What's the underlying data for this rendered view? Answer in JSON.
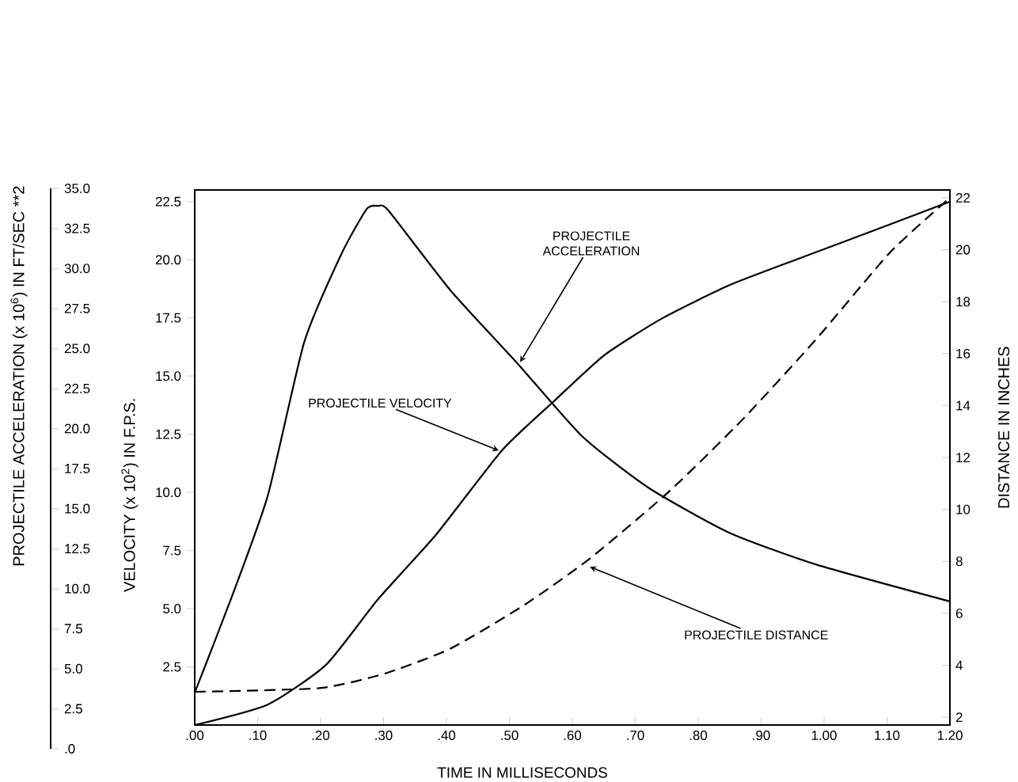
{
  "chart_data": {
    "type": "line",
    "xlabel": "TIME IN MILLISECONDS",
    "ylabel": "VELOCITY (x 10$^{2}$) IN F.P.S.",
    "y2label": "DISTANCE IN INCHES",
    "y3label": "PROJECTILE ACCELERATION (x 10$^{6}$) IN FT/SEC **2",
    "xlim": [
      0,
      1.2
    ],
    "ylim": [
      0,
      23
    ],
    "y2lim": [
      1.7,
      22.3
    ],
    "y3lim": [
      0,
      35
    ],
    "xticks": [
      {
        "value": 0,
        "label": ".00"
      },
      {
        "value": 0.1,
        "label": ".10"
      },
      {
        "value": 0.2,
        "label": ".20"
      },
      {
        "value": 0.3,
        "label": ".30"
      },
      {
        "value": 0.4,
        "label": ".40"
      },
      {
        "value": 0.5,
        "label": ".50"
      },
      {
        "value": 0.6,
        "label": ".60"
      },
      {
        "value": 0.7,
        "label": ".70"
      },
      {
        "value": 0.8,
        "label": ".80"
      },
      {
        "value": 0.9,
        "label": ".90"
      },
      {
        "value": 1.0,
        "label": "1.00"
      },
      {
        "value": 1.1,
        "label": "1.10"
      },
      {
        "value": 1.2,
        "label": "1.20"
      }
    ],
    "yticks": [
      2.5,
      {
        "value": 5,
        "label": "5.0"
      },
      7.5,
      {
        "value": 10,
        "label": "10.0"
      },
      12.5,
      {
        "value": 15,
        "label": "15.0"
      },
      17.5,
      {
        "value": 20,
        "label": "20.0"
      },
      22.5
    ],
    "y2ticks": [
      2,
      4,
      6,
      8,
      10,
      12,
      14,
      16,
      18,
      20,
      22
    ],
    "y3ticks": [
      {
        "value": 0,
        "label": ".0"
      },
      2.5,
      {
        "value": 5,
        "label": "5.0"
      },
      7.5,
      {
        "value": 10,
        "label": "10.0"
      },
      12.5,
      {
        "value": 15,
        "label": "15.0"
      },
      17.5,
      {
        "value": 20,
        "label": "20.0"
      },
      22.5,
      {
        "value": 25,
        "label": "25.0"
      },
      27.5,
      {
        "value": 30,
        "label": "30.0"
      },
      32.5,
      {
        "value": 35,
        "label": "35.0"
      }
    ],
    "grid": false,
    "marker": "none",
    "series": [
      {
        "axis": "y3",
        "color": "#000000",
        "line_style": "solid",
        "x": [
          0,
          0.058,
          0.116,
          0.174,
          0.233,
          0.273,
          0.291,
          0.308,
          0.407,
          0.512,
          0.616,
          0.721,
          0.849,
          0.988,
          1.2
        ],
        "values": [
          3.5,
          9.4,
          15.8,
          25.4,
          30.9,
          33.7,
          33.9,
          33.6,
          28.6,
          24.1,
          19.5,
          16.3,
          13.5,
          11.5,
          9.2
        ]
      },
      {
        "axis": "y",
        "color": "#000000",
        "line_style": "solid",
        "x": [
          0,
          0.116,
          0.209,
          0.291,
          0.384,
          0.488,
          0.57,
          0.651,
          0.744,
          0.849,
          0.965,
          1.093,
          1.2
        ],
        "values": [
          0,
          0.88,
          2.6,
          5.4,
          8.2,
          11.8,
          13.9,
          15.9,
          17.5,
          18.9,
          20.1,
          21.4,
          22.5
        ]
      },
      {
        "axis": "y2",
        "color": "#000000",
        "line_style": "dashed",
        "x": [
          0,
          0.198,
          0.302,
          0.407,
          0.523,
          0.628,
          0.756,
          0.872,
          0.988,
          1.105,
          1.2
        ],
        "values": [
          2.98,
          3.12,
          3.68,
          4.65,
          6.31,
          8.11,
          10.74,
          13.5,
          16.57,
          19.9,
          22.0
        ]
      }
    ],
    "annotations": [
      {
        "text": "PROJECTILE ACCELERATION",
        "x": 0.517,
        "y": 15.6
      },
      {
        "text": "PROJECTILE VELOCITY",
        "x": 0.483,
        "y": 11.8
      },
      {
        "text": "PROJECTILE DISTANCE",
        "x": 0.628,
        "y": 6.8
      }
    ]
  }
}
